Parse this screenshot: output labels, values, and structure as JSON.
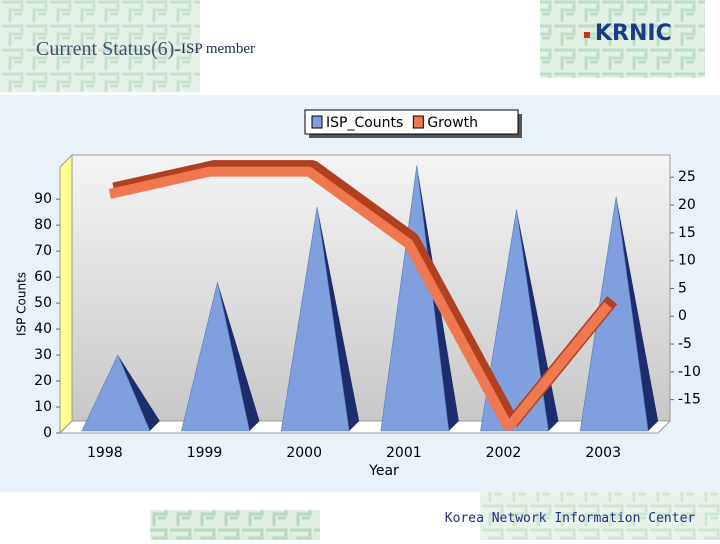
{
  "header": {
    "title": "Current Status(6)-",
    "title_suffix": "ISP member",
    "logo": "KRNIC"
  },
  "footer": {
    "text": "Korea Network Information Center"
  },
  "chart_data": {
    "type": "bar",
    "categories": [
      "1998",
      "1999",
      "2000",
      "2001",
      "2002",
      "2003"
    ],
    "series": [
      {
        "name": "ISP_Counts",
        "color": "#7f9fdf",
        "type": "bar",
        "values": [
          30,
          58,
          87,
          103,
          86,
          91
        ]
      },
      {
        "name": "Growth",
        "color": "#f07850",
        "type": "line",
        "axis": "y2",
        "values": [
          22,
          26,
          26,
          13,
          -20,
          2
        ]
      }
    ],
    "y_label": "ISP Counts",
    "x_label": "Year",
    "ylim": [
      0,
      107
    ],
    "yticks": [
      0,
      10,
      20,
      30,
      40,
      50,
      60,
      70,
      80,
      90
    ],
    "y2lim": [
      -21,
      29
    ],
    "y2ticks": [
      -15,
      -10,
      -5,
      0,
      5,
      10,
      15,
      20,
      25
    ],
    "legend": "top"
  }
}
